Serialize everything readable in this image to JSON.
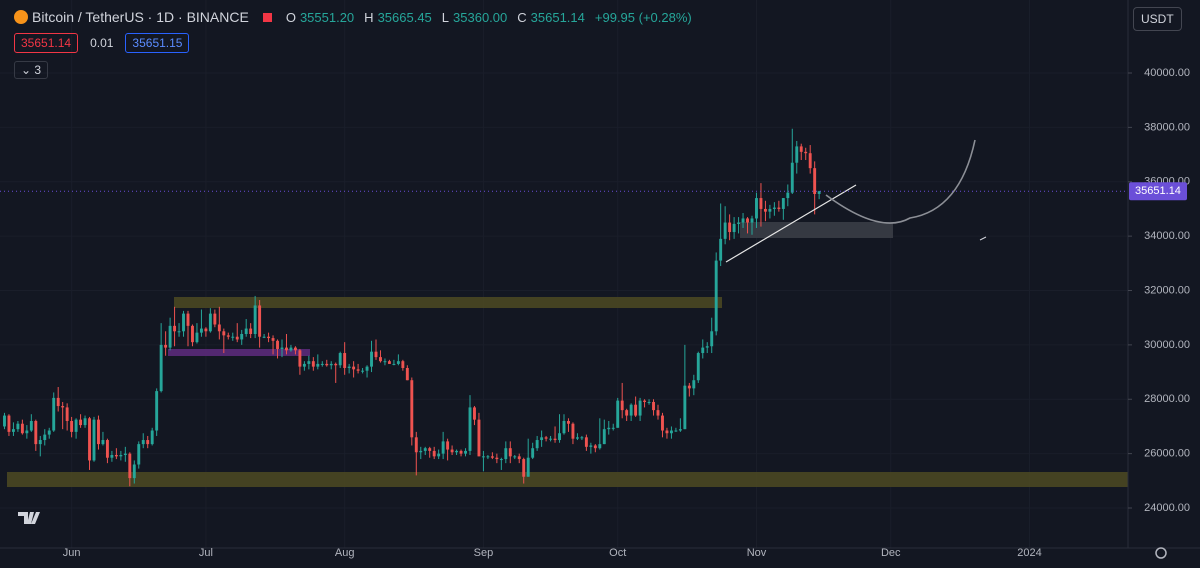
{
  "chart_data": {
    "type": "candlestick",
    "symbol": "Bitcoin / TetherUS · 1D · BINANCE",
    "ohlc_legend": {
      "o_key": "O",
      "open": "35551.20",
      "h_key": "H",
      "high": "35665.45",
      "l_key": "L",
      "low": "35360.00",
      "c_key": "C",
      "close": "35651.14",
      "change": "+99.95 (+0.28%)"
    },
    "sell_price": "35651.14",
    "spread": "0.01",
    "buy_price": "35651.15",
    "indicators_count": "3",
    "currency": "USDT",
    "last_price": 35651.14,
    "up_color": "#26a69a",
    "down_color": "#ef5350",
    "last_price_color": "#6b4fd8",
    "grid": true,
    "xlim": [
      -1,
      251
    ],
    "xticks": [
      {
        "value": 15,
        "label": "Jun"
      },
      {
        "value": 45,
        "label": "Jul"
      },
      {
        "value": 76,
        "label": "Aug"
      },
      {
        "value": 107,
        "label": "Sep"
      },
      {
        "value": 137,
        "label": "Oct"
      },
      {
        "value": 168,
        "label": "Nov"
      },
      {
        "value": 198,
        "label": "Dec"
      },
      {
        "value": 229,
        "label": "2024"
      }
    ],
    "ylim": [
      22529,
      42685
    ],
    "yticks": [
      {
        "value": 24000,
        "label": "24000.00"
      },
      {
        "value": 26000,
        "label": "26000.00"
      },
      {
        "value": 28000,
        "label": "28000.00"
      },
      {
        "value": 30000,
        "label": "30000.00"
      },
      {
        "value": 32000,
        "label": "32000.00"
      },
      {
        "value": 34000,
        "label": "34000.00"
      },
      {
        "value": 36000,
        "label": "36000.00"
      },
      {
        "value": 38000,
        "label": "38000.00"
      },
      {
        "value": 40000,
        "label": "40000.00"
      }
    ],
    "ohlc": [
      [
        27000,
        27500,
        26900,
        27400
      ],
      [
        27400,
        27450,
        26650,
        26800
      ],
      [
        26800,
        27150,
        26650,
        26900
      ],
      [
        26900,
        27200,
        26800,
        27100
      ],
      [
        27100,
        27250,
        26700,
        26750
      ],
      [
        26750,
        27050,
        26550,
        26850
      ],
      [
        26850,
        27450,
        26800,
        27200
      ],
      [
        27200,
        27250,
        26100,
        26350
      ],
      [
        26350,
        26650,
        25900,
        26500
      ],
      [
        26500,
        26900,
        26300,
        26700
      ],
      [
        26700,
        26950,
        26550,
        26850
      ],
      [
        26850,
        28250,
        26800,
        28050
      ],
      [
        28050,
        28450,
        27550,
        27750
      ],
      [
        27750,
        27900,
        26900,
        27700
      ],
      [
        27700,
        27850,
        26850,
        27200
      ],
      [
        27200,
        27350,
        26600,
        26800
      ],
      [
        26800,
        27300,
        26550,
        27250
      ],
      [
        27250,
        27450,
        26950,
        27050
      ],
      [
        27050,
        27400,
        26950,
        27300
      ],
      [
        27300,
        27350,
        25400,
        25750
      ],
      [
        25750,
        27350,
        25700,
        27250
      ],
      [
        27250,
        27400,
        26150,
        26350
      ],
      [
        26350,
        26800,
        26300,
        26500
      ],
      [
        26500,
        26550,
        25650,
        25850
      ],
      [
        25850,
        26100,
        25700,
        25950
      ],
      [
        25950,
        26200,
        25800,
        25900
      ],
      [
        25900,
        26100,
        25750,
        25950
      ],
      [
        25950,
        26250,
        25700,
        26000
      ],
      [
        26000,
        26050,
        24800,
        25100
      ],
      [
        25100,
        25750,
        24900,
        25600
      ],
      [
        25600,
        26450,
        25450,
        26350
      ],
      [
        26350,
        26750,
        26200,
        26500
      ],
      [
        26500,
        26650,
        26200,
        26350
      ],
      [
        26350,
        26950,
        26300,
        26850
      ],
      [
        26850,
        28400,
        26650,
        28300
      ],
      [
        28300,
        30800,
        28250,
        30000
      ],
      [
        30000,
        30500,
        29600,
        29900
      ],
      [
        29900,
        31000,
        29800,
        30700
      ],
      [
        30700,
        31400,
        29950,
        30500
      ],
      [
        30500,
        30800,
        30300,
        30500
      ],
      [
        30500,
        31250,
        30300,
        31150
      ],
      [
        31150,
        31250,
        29950,
        30700
      ],
      [
        30700,
        30750,
        29950,
        30100
      ],
      [
        30100,
        30800,
        30050,
        30450
      ],
      [
        30450,
        31300,
        30300,
        30600
      ],
      [
        30600,
        30650,
        30300,
        30500
      ],
      [
        30500,
        31350,
        30450,
        31150
      ],
      [
        31150,
        31300,
        30650,
        30750
      ],
      [
        30750,
        31400,
        30200,
        30500
      ],
      [
        30500,
        30600,
        29700,
        30350
      ],
      [
        30350,
        30450,
        30200,
        30300
      ],
      [
        30300,
        30450,
        30150,
        30300
      ],
      [
        30300,
        30800,
        30100,
        30200
      ],
      [
        30200,
        30550,
        30000,
        30400
      ],
      [
        30400,
        30950,
        30300,
        30600
      ],
      [
        30600,
        30800,
        30250,
        30400
      ],
      [
        30400,
        31800,
        30250,
        31450
      ],
      [
        31450,
        31650,
        29900,
        30300
      ],
      [
        30300,
        30400,
        30250,
        30300
      ],
      [
        30300,
        30450,
        30100,
        30250
      ],
      [
        30250,
        30350,
        29650,
        30150
      ],
      [
        30150,
        30200,
        29500,
        29850
      ],
      [
        29850,
        30200,
        29550,
        29900
      ],
      [
        29900,
        30400,
        29650,
        29800
      ],
      [
        29800,
        30000,
        29750,
        29900
      ],
      [
        29900,
        29950,
        29650,
        29800
      ],
      [
        29800,
        29850,
        28900,
        29200
      ],
      [
        29200,
        29400,
        29050,
        29300
      ],
      [
        29300,
        29600,
        29100,
        29400
      ],
      [
        29400,
        29550,
        29050,
        29200
      ],
      [
        29200,
        29650,
        29100,
        29300
      ],
      [
        29300,
        29400,
        29200,
        29300
      ],
      [
        29300,
        29450,
        29200,
        29250
      ],
      [
        29250,
        29400,
        29100,
        29300
      ],
      [
        29300,
        29350,
        28600,
        29250
      ],
      [
        29250,
        29750,
        29150,
        29700
      ],
      [
        29700,
        30100,
        28900,
        29150
      ],
      [
        29150,
        29300,
        28950,
        29200
      ],
      [
        29200,
        29400,
        28800,
        29100
      ],
      [
        29100,
        29300,
        28950,
        29050
      ],
      [
        29050,
        29150,
        28950,
        29050
      ],
      [
        29050,
        29250,
        28800,
        29200
      ],
      [
        29200,
        30150,
        29000,
        29750
      ],
      [
        29750,
        30200,
        29450,
        29550
      ],
      [
        29550,
        29800,
        29350,
        29400
      ],
      [
        29400,
        29500,
        29250,
        29400
      ],
      [
        29400,
        29450,
        29300,
        29300
      ],
      [
        29300,
        29450,
        29250,
        29300
      ],
      [
        29300,
        29650,
        29250,
        29400
      ],
      [
        29400,
        29450,
        29050,
        29150
      ],
      [
        29150,
        29250,
        28700,
        28700
      ],
      [
        28700,
        28800,
        26300,
        26600
      ],
      [
        26600,
        26800,
        25200,
        26050
      ],
      [
        26050,
        26250,
        25800,
        26100
      ],
      [
        26100,
        26250,
        25950,
        26200
      ],
      [
        26200,
        26250,
        25850,
        26100
      ],
      [
        26100,
        26250,
        25800,
        25900
      ],
      [
        25900,
        26150,
        25800,
        26000
      ],
      [
        26000,
        26800,
        25800,
        26450
      ],
      [
        26450,
        26550,
        25750,
        26150
      ],
      [
        26150,
        26300,
        25950,
        26050
      ],
      [
        26050,
        26150,
        25950,
        26100
      ],
      [
        26100,
        26150,
        25900,
        26000
      ],
      [
        26000,
        26200,
        25900,
        26100
      ],
      [
        26100,
        28150,
        25950,
        27700
      ],
      [
        27700,
        27750,
        27050,
        27250
      ],
      [
        27250,
        27500,
        25900,
        25900
      ],
      [
        25900,
        26100,
        25350,
        25900
      ],
      [
        25900,
        25950,
        25800,
        25900
      ],
      [
        25900,
        26050,
        25800,
        25850
      ],
      [
        25850,
        26000,
        25650,
        25800
      ],
      [
        25800,
        25850,
        25400,
        25800
      ],
      [
        25800,
        26450,
        25650,
        26200
      ],
      [
        26200,
        26450,
        25650,
        25900
      ],
      [
        25900,
        25950,
        25800,
        25900
      ],
      [
        25900,
        26000,
        25650,
        25800
      ],
      [
        25800,
        25850,
        24900,
        25150
      ],
      [
        25150,
        26550,
        25150,
        25850
      ],
      [
        25850,
        26400,
        25800,
        26200
      ],
      [
        26200,
        26650,
        26100,
        26500
      ],
      [
        26500,
        26850,
        26250,
        26600
      ],
      [
        26600,
        26650,
        26450,
        26550
      ],
      [
        26550,
        26650,
        26450,
        26550
      ],
      [
        26550,
        27000,
        26400,
        26500
      ],
      [
        26500,
        27450,
        26400,
        26750
      ],
      [
        26750,
        27450,
        26700,
        27200
      ],
      [
        27200,
        27300,
        26800,
        27100
      ],
      [
        27100,
        27150,
        26350,
        26550
      ],
      [
        26550,
        26750,
        26500,
        26600
      ],
      [
        26600,
        26650,
        26500,
        26600
      ],
      [
        26600,
        26700,
        26100,
        26250
      ],
      [
        26250,
        26400,
        26000,
        26300
      ],
      [
        26300,
        26350,
        26050,
        26200
      ],
      [
        26200,
        27300,
        26150,
        26350
      ],
      [
        26350,
        27250,
        26350,
        26900
      ],
      [
        26900,
        27200,
        26700,
        26950
      ],
      [
        26950,
        27100,
        26850,
        26950
      ],
      [
        26950,
        28050,
        26950,
        27950
      ],
      [
        27950,
        28600,
        27300,
        27600
      ],
      [
        27600,
        27650,
        27200,
        27400
      ],
      [
        27400,
        27850,
        27200,
        27800
      ],
      [
        27800,
        28100,
        27350,
        27400
      ],
      [
        27400,
        28050,
        27200,
        27950
      ],
      [
        27950,
        28000,
        27700,
        27900
      ],
      [
        27900,
        28000,
        27800,
        27900
      ],
      [
        27900,
        28000,
        27400,
        27600
      ],
      [
        27600,
        27800,
        27250,
        27400
      ],
      [
        27400,
        27500,
        26600,
        26850
      ],
      [
        26850,
        26950,
        26550,
        26750
      ],
      [
        26750,
        27000,
        26550,
        26850
      ],
      [
        26850,
        26950,
        26800,
        26850
      ],
      [
        26850,
        27300,
        26800,
        26900
      ],
      [
        26900,
        30000,
        26900,
        28500
      ],
      [
        28500,
        28600,
        28100,
        28400
      ],
      [
        28400,
        28900,
        28150,
        28700
      ],
      [
        28700,
        29750,
        28600,
        29700
      ],
      [
        29700,
        30200,
        29500,
        29900
      ],
      [
        29900,
        30100,
        29700,
        29950
      ],
      [
        29950,
        31000,
        29700,
        30500
      ],
      [
        30500,
        33400,
        30350,
        33100
      ],
      [
        33100,
        35200,
        32900,
        33900
      ],
      [
        33900,
        35100,
        33700,
        34500
      ],
      [
        34500,
        34800,
        33850,
        34150
      ],
      [
        34150,
        34700,
        33900,
        34450
      ],
      [
        34450,
        34700,
        34100,
        34500
      ],
      [
        34500,
        34850,
        34300,
        34650
      ],
      [
        34650,
        34700,
        34100,
        34500
      ],
      [
        34500,
        34750,
        34050,
        34650
      ],
      [
        34650,
        35600,
        34300,
        35400
      ],
      [
        35400,
        35950,
        34350,
        35000
      ],
      [
        35000,
        35300,
        34550,
        34900
      ],
      [
        34900,
        35150,
        34650,
        35000
      ],
      [
        35000,
        35250,
        34750,
        35050
      ],
      [
        35050,
        35300,
        34900,
        35000
      ],
      [
        35000,
        35400,
        34600,
        35400
      ],
      [
        35400,
        35900,
        35100,
        35600
      ],
      [
        35600,
        37950,
        35550,
        36700
      ],
      [
        36700,
        37500,
        36300,
        37300
      ],
      [
        37300,
        37400,
        36800,
        37100
      ],
      [
        37100,
        37250,
        36800,
        37050
      ],
      [
        37050,
        37350,
        36300,
        36500
      ],
      [
        36500,
        36750,
        34800,
        35550
      ],
      [
        35551.2,
        35665.45,
        35360,
        35651.14
      ]
    ]
  }
}
